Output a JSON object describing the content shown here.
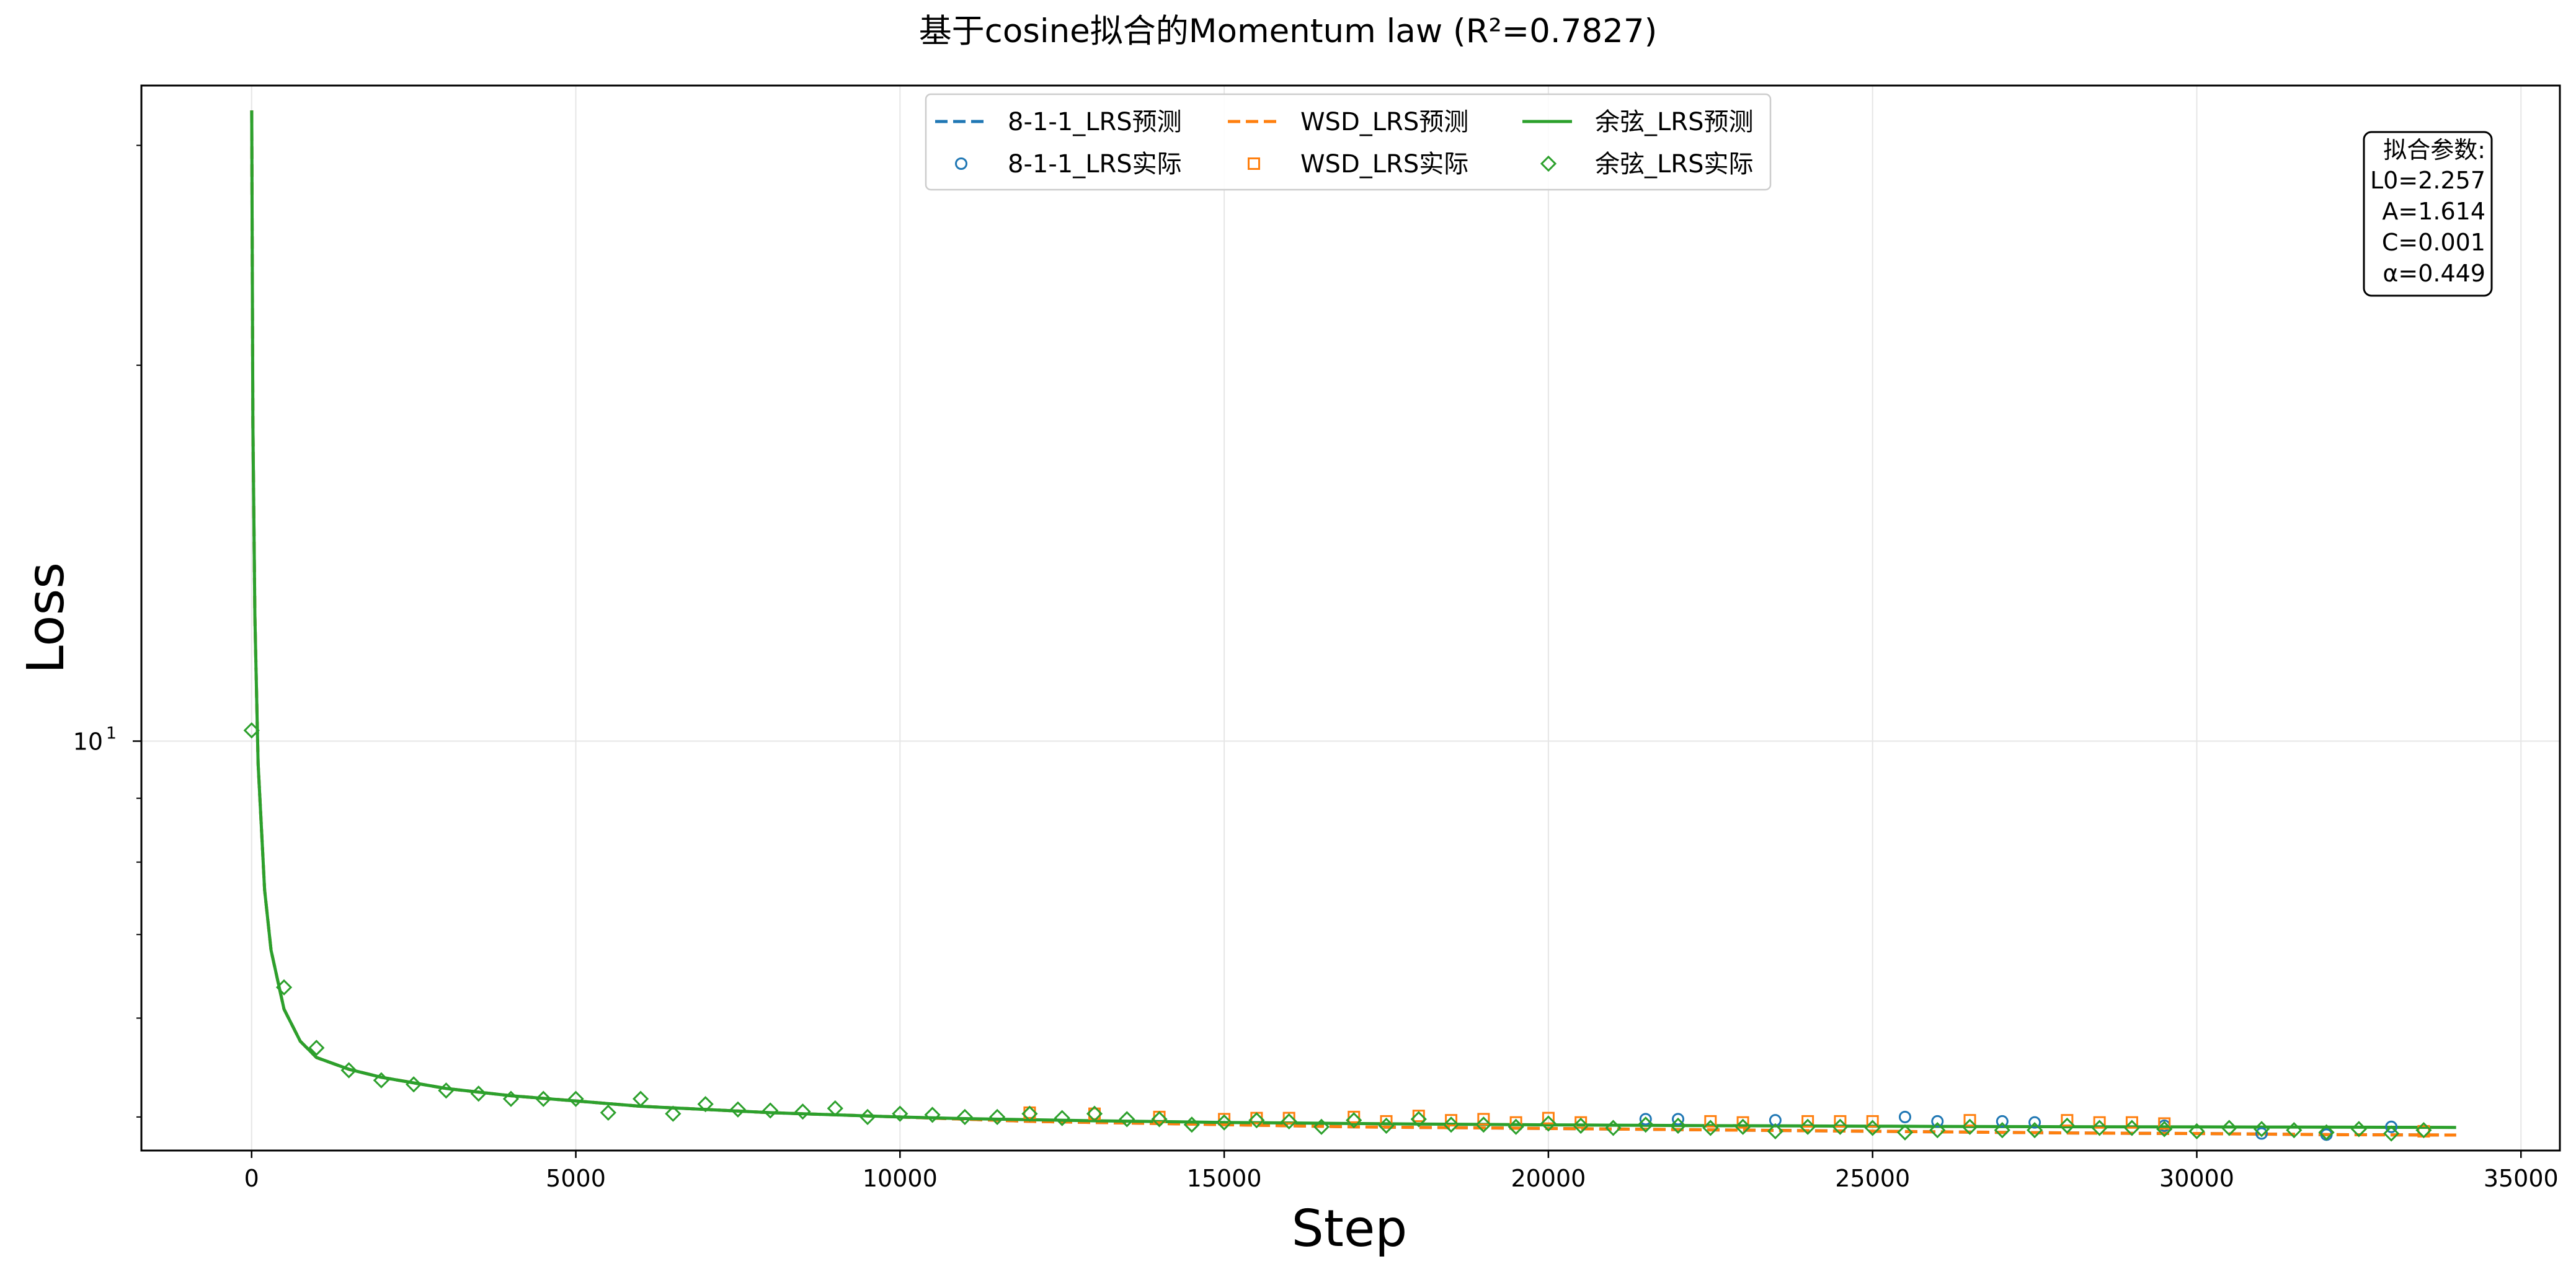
{
  "chart_data": {
    "type": "line",
    "title": "基于cosine拟合的Momentum law (R²=0.7827)",
    "xlabel": "Step",
    "ylabel": "Loss",
    "xlim": [
      -1700,
      35600
    ],
    "ylim": [
      4.7,
      33.5
    ],
    "yscale": "log",
    "grid": true,
    "legend_position": "top-center",
    "x_ticks": [
      {
        "value": 0,
        "label": "0"
      },
      {
        "value": 5000,
        "label": "5000"
      },
      {
        "value": 10000,
        "label": "10000"
      },
      {
        "value": 15000,
        "label": "15000"
      },
      {
        "value": 20000,
        "label": "20000"
      },
      {
        "value": 25000,
        "label": "25000"
      },
      {
        "value": 30000,
        "label": "30000"
      },
      {
        "value": 35000,
        "label": "35000"
      }
    ],
    "y_ticks": [
      {
        "value": 10,
        "base": "10",
        "exp": "1"
      }
    ],
    "fit_params": {
      "heading": "拟合参数:",
      "lines": [
        "L0=2.257",
        "A=1.614",
        "C=0.001",
        "α=0.449"
      ]
    },
    "series": [
      {
        "name": "8-1-1_LRS预测",
        "kind": "line",
        "color": "#1f77b4",
        "dash": true,
        "x": [
          1,
          20,
          50,
          100,
          200,
          300,
          500,
          750,
          1000,
          1500,
          2000,
          3000,
          4000,
          5000,
          6000,
          7000,
          8000,
          9000,
          10000,
          11000,
          12000,
          13000,
          14000,
          15000,
          16000,
          17000,
          18000,
          19000,
          20000,
          21000,
          22000,
          23000,
          24000,
          25000,
          26000,
          27000,
          28000,
          29000,
          30000,
          31000,
          32000,
          33000,
          34000
        ],
        "y": [
          32.0,
          18.0,
          12.6,
          9.6,
          7.6,
          6.8,
          6.1,
          5.75,
          5.58,
          5.46,
          5.38,
          5.27,
          5.2,
          5.15,
          5.1,
          5.07,
          5.04,
          5.02,
          5.0,
          4.98,
          4.96,
          4.95,
          4.94,
          4.93,
          4.92,
          4.91,
          4.905,
          4.9,
          4.895,
          4.89,
          4.885,
          4.88,
          4.875,
          4.87,
          4.865,
          4.86,
          4.855,
          4.852,
          4.85,
          4.845,
          4.84,
          4.838,
          4.836
        ]
      },
      {
        "name": "WSD_LRS预测",
        "kind": "line",
        "color": "#ff7f0e",
        "dash": true,
        "x": [
          1,
          20,
          50,
          100,
          200,
          300,
          500,
          750,
          1000,
          1500,
          2000,
          3000,
          4000,
          5000,
          6000,
          7000,
          8000,
          9000,
          10000,
          11000,
          12000,
          13000,
          14000,
          15000,
          16000,
          17000,
          18000,
          19000,
          20000,
          21000,
          22000,
          23000,
          24000,
          25000,
          26000,
          27000,
          28000,
          29000,
          30000,
          31000,
          32000,
          33000,
          34000
        ],
        "y": [
          32.0,
          18.0,
          12.6,
          9.6,
          7.6,
          6.8,
          6.1,
          5.75,
          5.58,
          5.46,
          5.38,
          5.27,
          5.2,
          5.15,
          5.1,
          5.07,
          5.04,
          5.02,
          5.0,
          4.98,
          4.96,
          4.95,
          4.94,
          4.93,
          4.92,
          4.91,
          4.905,
          4.9,
          4.895,
          4.89,
          4.885,
          4.88,
          4.875,
          4.87,
          4.865,
          4.86,
          4.855,
          4.852,
          4.85,
          4.845,
          4.84,
          4.838,
          4.836
        ]
      },
      {
        "name": "余弦_LRS预测",
        "kind": "line",
        "color": "#2ca02c",
        "dash": false,
        "x": [
          1,
          20,
          50,
          100,
          200,
          300,
          500,
          750,
          1000,
          1500,
          2000,
          3000,
          4000,
          5000,
          6000,
          7000,
          8000,
          9000,
          10000,
          11000,
          12000,
          13000,
          14000,
          15000,
          16000,
          17000,
          18000,
          19000,
          20000,
          21000,
          22000,
          23000,
          24000,
          25000,
          26000,
          27000,
          28000,
          29000,
          30000,
          31000,
          32000,
          33000,
          34000
        ],
        "y": [
          32.0,
          18.0,
          12.6,
          9.6,
          7.6,
          6.8,
          6.1,
          5.75,
          5.58,
          5.46,
          5.38,
          5.27,
          5.2,
          5.15,
          5.1,
          5.07,
          5.04,
          5.02,
          5.0,
          4.985,
          4.975,
          4.965,
          4.958,
          4.95,
          4.945,
          4.94,
          4.935,
          4.932,
          4.928,
          4.925,
          4.922,
          4.92,
          4.918,
          4.916,
          4.914,
          4.912,
          4.911,
          4.91,
          4.909,
          4.908,
          4.907,
          4.906,
          4.905
        ]
      },
      {
        "name": "8-1-1_LRS实际",
        "kind": "scatter",
        "marker": "circle",
        "color": "#1f77b4",
        "x": [
          21500,
          22000,
          23500,
          25500,
          26000,
          27000,
          27500,
          29500,
          31000,
          32000,
          33000
        ],
        "y": [
          4.98,
          4.98,
          4.97,
          5.0,
          4.96,
          4.96,
          4.95,
          4.92,
          4.85,
          4.84,
          4.91
        ]
      },
      {
        "name": "WSD_LRS实际",
        "kind": "scatter",
        "marker": "square",
        "color": "#ff7f0e",
        "x": [
          12000,
          13000,
          14000,
          15000,
          15500,
          16000,
          17000,
          17500,
          18000,
          18500,
          19000,
          19500,
          20000,
          20500,
          22500,
          23000,
          24000,
          24500,
          25000,
          26500,
          28000,
          28500,
          29000,
          29500,
          33500
        ],
        "y": [
          5.04,
          5.03,
          5.0,
          4.98,
          4.99,
          4.99,
          5.0,
          4.96,
          5.01,
          4.97,
          4.98,
          4.95,
          4.99,
          4.95,
          4.96,
          4.95,
          4.96,
          4.96,
          4.96,
          4.97,
          4.97,
          4.95,
          4.95,
          4.94,
          4.87
        ]
      },
      {
        "name": "余弦_LRS实际",
        "kind": "scatter",
        "marker": "diamond",
        "color": "#2ca02c",
        "x": [
          0,
          500,
          1000,
          1500,
          2000,
          2500,
          3000,
          3500,
          4000,
          4500,
          5000,
          5500,
          6000,
          6500,
          7000,
          7500,
          8000,
          8500,
          9000,
          9500,
          10000,
          10500,
          11000,
          11500,
          12000,
          12500,
          13000,
          13500,
          14000,
          14500,
          15000,
          15500,
          16000,
          16500,
          17000,
          17500,
          18000,
          18500,
          19000,
          19500,
          20000,
          20500,
          21000,
          21500,
          22000,
          22500,
          23000,
          23500,
          24000,
          24500,
          25000,
          25500,
          26000,
          26500,
          27000,
          27500,
          28000,
          28500,
          29000,
          29500,
          30000,
          30500,
          31000,
          31500,
          32000,
          32500,
          33000,
          33500
        ],
        "y": [
          10.2,
          6.35,
          5.68,
          5.45,
          5.35,
          5.31,
          5.25,
          5.22,
          5.17,
          5.17,
          5.17,
          5.04,
          5.17,
          5.03,
          5.12,
          5.07,
          5.06,
          5.05,
          5.08,
          5.0,
          5.03,
          5.02,
          5.0,
          5.0,
          5.03,
          4.99,
          5.03,
          4.98,
          4.98,
          4.93,
          4.95,
          4.97,
          4.96,
          4.91,
          4.97,
          4.92,
          4.98,
          4.93,
          4.93,
          4.91,
          4.94,
          4.92,
          4.9,
          4.93,
          4.92,
          4.9,
          4.91,
          4.87,
          4.91,
          4.91,
          4.9,
          4.86,
          4.88,
          4.91,
          4.88,
          4.88,
          4.92,
          4.9,
          4.9,
          4.89,
          4.87,
          4.9,
          4.89,
          4.88,
          4.86,
          4.89,
          4.85,
          4.88
        ]
      }
    ]
  }
}
